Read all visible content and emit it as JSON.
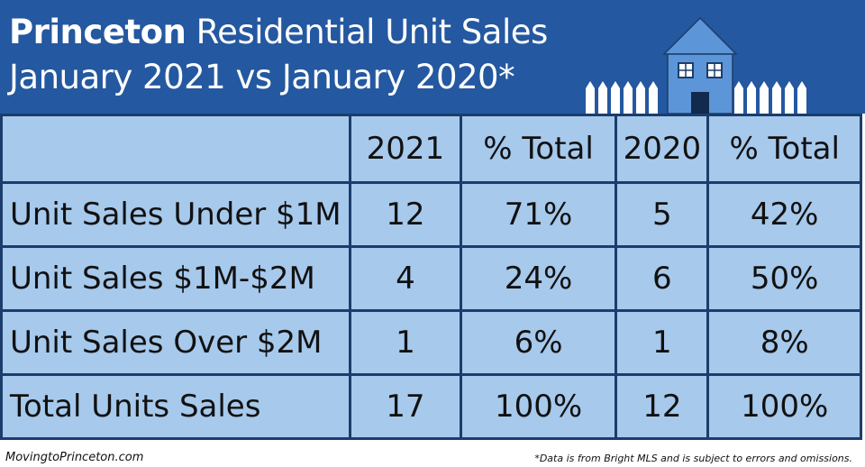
{
  "header": {
    "title_bold": "Princeton",
    "title_rest": "Residential Unit Sales",
    "subtitle": "January 2021 vs January 2020*"
  },
  "table": {
    "columns": [
      "2021",
      "% Total",
      "2020",
      "% Total"
    ],
    "rows": [
      [
        "Unit Sales Under $1M",
        "12",
        "71%",
        "5",
        "42%"
      ],
      [
        "Unit Sales $1M-$2M",
        "4",
        "24%",
        "6",
        "50%"
      ],
      [
        "Unit Sales Over $2M",
        "1",
        "6%",
        "1",
        "8%"
      ],
      [
        "Total Units Sales",
        "17",
        "100%",
        "12",
        "100%"
      ]
    ]
  },
  "footer": {
    "site": "MovingtoPrinceton.com",
    "note": "*Data is from Bright MLS and is subject to errors and omissions."
  }
}
